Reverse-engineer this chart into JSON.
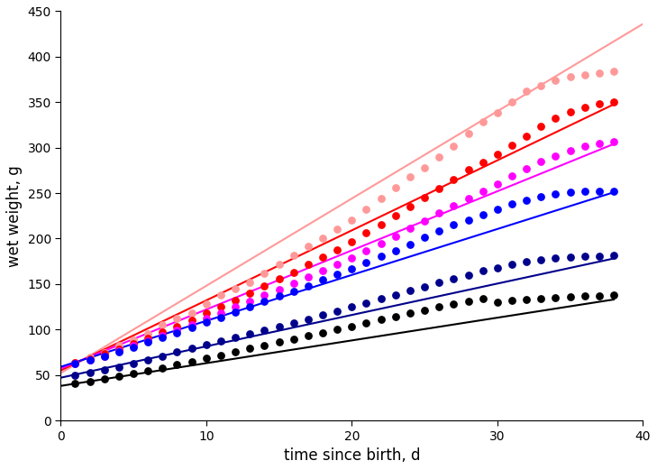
{
  "series": [
    {
      "color": "#FF9999",
      "line_intercept": 52,
      "line_slope": 9.6,
      "dot_x": [
        1,
        2,
        3,
        4,
        5,
        6,
        7,
        8,
        9,
        10,
        11,
        12,
        13,
        14,
        15,
        16,
        17,
        18,
        19,
        20,
        21,
        22,
        23,
        24,
        25,
        26,
        27,
        28,
        29,
        30,
        31,
        32,
        33,
        34,
        35,
        36,
        37,
        38
      ],
      "dot_y": [
        64,
        70,
        74,
        82,
        88,
        95,
        105,
        112,
        118,
        128,
        138,
        145,
        152,
        162,
        172,
        182,
        192,
        200,
        210,
        220,
        232,
        244,
        256,
        268,
        278,
        290,
        302,
        316,
        328,
        338,
        350,
        362,
        368,
        374,
        378,
        380,
        382,
        384
      ]
    },
    {
      "color": "#FF0000",
      "line_intercept": 55,
      "line_slope": 7.7,
      "dot_x": [
        1,
        2,
        3,
        4,
        5,
        6,
        7,
        8,
        9,
        10,
        11,
        12,
        13,
        14,
        15,
        16,
        17,
        18,
        19,
        20,
        21,
        22,
        23,
        24,
        25,
        26,
        27,
        28,
        29,
        30,
        31,
        32,
        33,
        34,
        35,
        36,
        37,
        38
      ],
      "dot_y": [
        64,
        68,
        73,
        78,
        84,
        90,
        97,
        103,
        110,
        118,
        125,
        132,
        140,
        148,
        156,
        163,
        172,
        180,
        188,
        196,
        206,
        215,
        225,
        235,
        245,
        255,
        265,
        276,
        284,
        293,
        303,
        313,
        323,
        332,
        339,
        344,
        348,
        350
      ]
    },
    {
      "color": "#FF00FF",
      "line_intercept": 57,
      "line_slope": 6.5,
      "dot_x": [
        1,
        2,
        3,
        4,
        5,
        6,
        7,
        8,
        9,
        10,
        11,
        12,
        13,
        14,
        15,
        16,
        17,
        18,
        19,
        20,
        21,
        22,
        23,
        24,
        25,
        26,
        27,
        28,
        29,
        30,
        31,
        32,
        33,
        34,
        35,
        36,
        37,
        38
      ],
      "dot_y": [
        63,
        67,
        71,
        76,
        82,
        87,
        93,
        99,
        105,
        112,
        118,
        125,
        131,
        138,
        144,
        151,
        158,
        165,
        172,
        179,
        187,
        195,
        202,
        211,
        219,
        228,
        236,
        244,
        252,
        260,
        269,
        277,
        285,
        291,
        297,
        302,
        305,
        307
      ]
    },
    {
      "color": "#0000FF",
      "line_intercept": 59,
      "line_slope": 5.05,
      "dot_x": [
        1,
        2,
        3,
        4,
        5,
        6,
        7,
        8,
        9,
        10,
        11,
        12,
        13,
        14,
        15,
        16,
        17,
        18,
        19,
        20,
        21,
        22,
        23,
        24,
        25,
        26,
        27,
        28,
        29,
        30,
        31,
        32,
        33,
        34,
        35,
        36,
        37,
        38
      ],
      "dot_y": [
        63,
        67,
        71,
        75,
        80,
        86,
        91,
        96,
        102,
        108,
        113,
        119,
        125,
        131,
        137,
        142,
        148,
        155,
        161,
        167,
        174,
        181,
        187,
        194,
        201,
        208,
        215,
        220,
        226,
        232,
        238,
        242,
        246,
        249,
        251,
        252,
        252,
        252
      ]
    },
    {
      "color": "#00008B",
      "line_intercept": 47,
      "line_slope": 3.45,
      "dot_x": [
        1,
        2,
        3,
        4,
        5,
        6,
        7,
        8,
        9,
        10,
        11,
        12,
        13,
        14,
        15,
        16,
        17,
        18,
        19,
        20,
        21,
        22,
        23,
        24,
        25,
        26,
        27,
        28,
        29,
        30,
        31,
        32,
        33,
        34,
        35,
        36,
        37,
        38
      ],
      "dot_y": [
        50,
        53,
        56,
        59,
        63,
        67,
        71,
        75,
        79,
        83,
        87,
        91,
        95,
        99,
        103,
        107,
        111,
        116,
        120,
        125,
        129,
        134,
        138,
        143,
        147,
        152,
        156,
        160,
        165,
        168,
        172,
        175,
        177,
        179,
        180,
        181,
        181,
        182
      ]
    },
    {
      "color": "#000000",
      "line_intercept": 38,
      "line_slope": 2.5,
      "dot_x": [
        1,
        2,
        3,
        4,
        5,
        6,
        7,
        8,
        9,
        10,
        11,
        12,
        13,
        14,
        15,
        16,
        17,
        18,
        19,
        20,
        21,
        22,
        23,
        24,
        25,
        26,
        27,
        28,
        29,
        30,
        31,
        32,
        33,
        34,
        35,
        36,
        37,
        38
      ],
      "dot_y": [
        41,
        43,
        46,
        49,
        52,
        55,
        58,
        62,
        65,
        69,
        72,
        75,
        79,
        82,
        86,
        89,
        93,
        96,
        100,
        103,
        107,
        111,
        114,
        118,
        121,
        125,
        128,
        131,
        134,
        130,
        132,
        133,
        134,
        135,
        136,
        137,
        137,
        138
      ]
    }
  ],
  "xlabel": "time since birth, d",
  "ylabel": "wet weight, g",
  "xlim": [
    0,
    40
  ],
  "ylim": [
    0,
    450
  ],
  "xticks": [
    0,
    10,
    20,
    30,
    40
  ],
  "yticks": [
    0,
    50,
    100,
    150,
    200,
    250,
    300,
    350,
    400,
    450
  ],
  "line_x_start": 0,
  "line_x_ends": [
    42,
    38,
    38,
    38,
    38,
    38
  ],
  "dot_size": 40,
  "line_width": 1.5,
  "figsize": [
    7.29,
    5.21
  ],
  "dpi": 100
}
